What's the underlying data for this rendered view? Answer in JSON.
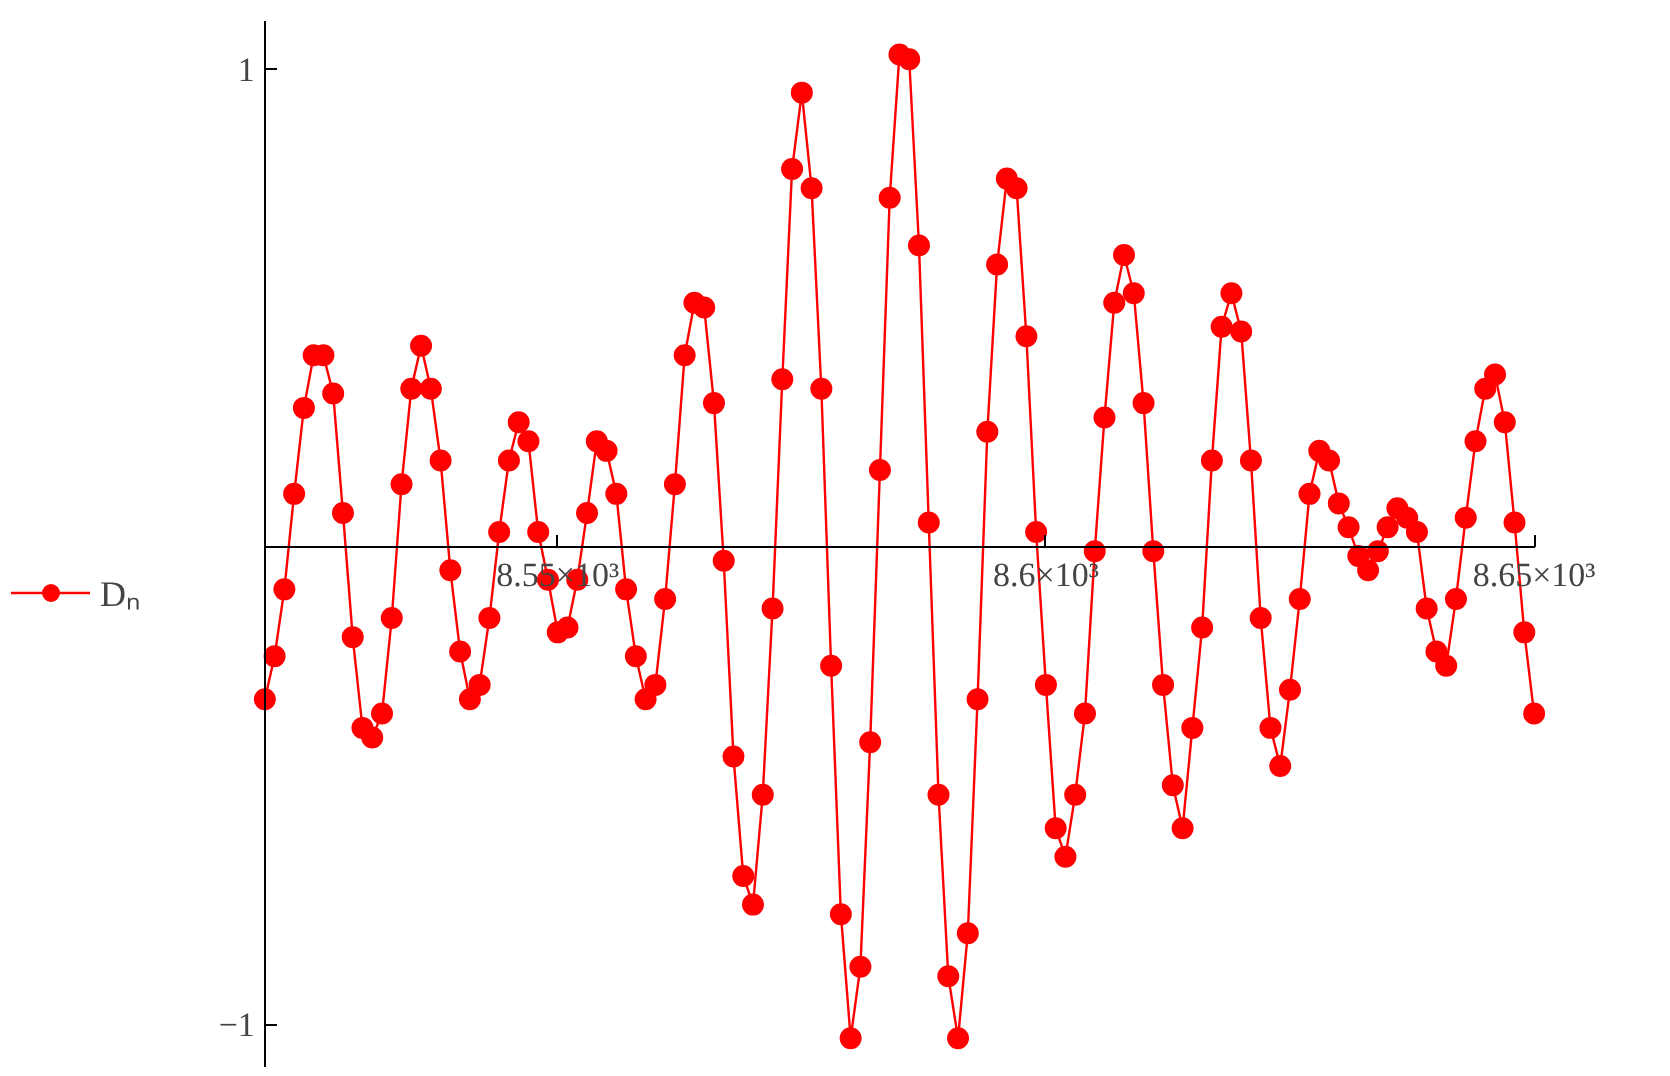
{
  "chart_data": {
    "type": "line",
    "x": [
      8520,
      8521,
      8522,
      8523,
      8524,
      8525,
      8526,
      8527,
      8528,
      8529,
      8530,
      8531,
      8532,
      8533,
      8534,
      8535,
      8536,
      8537,
      8538,
      8539,
      8540,
      8541,
      8542,
      8543,
      8544,
      8545,
      8546,
      8547,
      8548,
      8549,
      8550,
      8551,
      8552,
      8553,
      8554,
      8555,
      8556,
      8557,
      8558,
      8559,
      8560,
      8561,
      8562,
      8563,
      8564,
      8565,
      8566,
      8567,
      8568,
      8569,
      8570,
      8571,
      8572,
      8573,
      8574,
      8575,
      8576,
      8577,
      8578,
      8579,
      8580,
      8581,
      8582,
      8583,
      8584,
      8585,
      8586,
      8587,
      8588,
      8589,
      8590,
      8591,
      8592,
      8593,
      8594,
      8595,
      8596,
      8597,
      8598,
      8599,
      8600,
      8601,
      8602,
      8603,
      8604,
      8605,
      8606,
      8607,
      8608,
      8609,
      8610,
      8611,
      8612,
      8613,
      8614,
      8615,
      8616,
      8617,
      8618,
      8619,
      8620,
      8621,
      8622,
      8623,
      8624,
      8625,
      8626,
      8627,
      8628,
      8629,
      8630,
      8631,
      8632,
      8633,
      8634,
      8635,
      8636,
      8637,
      8638,
      8639,
      8640,
      8641,
      8642,
      8643,
      8644,
      8645,
      8646,
      8647,
      8648,
      8649,
      8650
    ],
    "series": [
      {
        "name": "Dₙ",
        "color": "#ff0000",
        "values": [
          -0.32,
          -0.23,
          -0.09,
          0.11,
          0.29,
          0.4,
          0.4,
          0.32,
          0.07,
          -0.19,
          -0.38,
          -0.4,
          -0.35,
          -0.15,
          0.13,
          0.33,
          0.42,
          0.33,
          0.18,
          -0.05,
          -0.22,
          -0.32,
          -0.29,
          -0.15,
          0.03,
          0.18,
          0.26,
          0.22,
          0.03,
          -0.07,
          -0.18,
          -0.17,
          -0.07,
          0.07,
          0.22,
          0.2,
          0.11,
          -0.09,
          -0.23,
          -0.32,
          -0.29,
          -0.11,
          0.13,
          0.4,
          0.51,
          0.5,
          0.3,
          -0.03,
          -0.44,
          -0.69,
          -0.75,
          -0.52,
          -0.13,
          0.35,
          0.79,
          0.95,
          0.75,
          0.33,
          -0.25,
          -0.77,
          -1.03,
          -0.88,
          -0.41,
          0.16,
          0.73,
          1.03,
          1.02,
          0.63,
          0.05,
          -0.52,
          -0.9,
          -1.03,
          -0.81,
          -0.32,
          0.24,
          0.59,
          0.77,
          0.75,
          0.44,
          0.03,
          -0.29,
          -0.59,
          -0.65,
          -0.52,
          -0.35,
          -0.01,
          0.27,
          0.51,
          0.61,
          0.53,
          0.3,
          -0.01,
          -0.29,
          -0.5,
          -0.59,
          -0.38,
          -0.17,
          0.18,
          0.46,
          0.53,
          0.45,
          0.18,
          -0.15,
          -0.38,
          -0.46,
          -0.3,
          -0.11,
          0.11,
          0.2,
          0.18,
          0.09,
          0.04,
          -0.02,
          -0.05,
          -0.01,
          0.04,
          0.08,
          0.06,
          0.03,
          -0.13,
          -0.22,
          -0.25,
          -0.11,
          0.06,
          0.22,
          0.33,
          0.36,
          0.26,
          0.05,
          -0.18,
          -0.35
        ]
      }
    ],
    "xlim": [
      8520,
      8650
    ],
    "ylim": [
      -1.09,
      1.1
    ],
    "xticks": [
      {
        "value": 8550,
        "label": "8.55×10³"
      },
      {
        "value": 8600,
        "label": "8.6×10³"
      },
      {
        "value": 8650,
        "label": "8.65×10³"
      }
    ],
    "yticks": [
      {
        "value": -1,
        "label": "−1"
      },
      1
    ],
    "grid": false,
    "legend": "left",
    "marker": "circle",
    "line_style": "solid"
  }
}
